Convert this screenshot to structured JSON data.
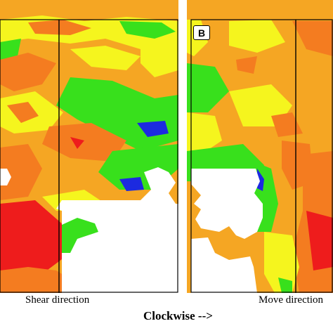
{
  "panels": [
    {
      "id": "A",
      "badge": ""
    },
    {
      "id": "B",
      "badge": "B"
    }
  ],
  "labels": {
    "shear_direction": "Shear direction",
    "move_direction": "Move direction",
    "clockwise": "Clockwise -->"
  },
  "colors": {
    "red": "#ee1c1c",
    "orange": "#f47c20",
    "light_orange": "#f5a623",
    "yellow": "#f5f51e",
    "green": "#38e01c",
    "blue": "#1c2ae0",
    "white": "#ffffff",
    "frame": "#000000"
  }
}
